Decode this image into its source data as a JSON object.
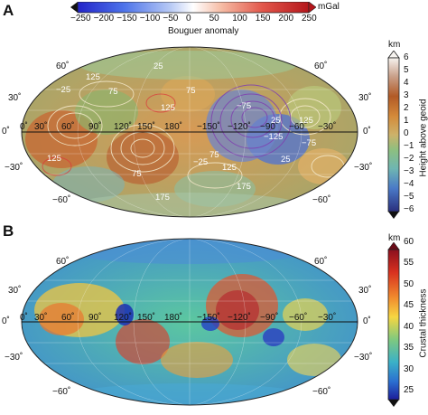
{
  "panel_a": {
    "letter": "A",
    "bouguer_colorbar": {
      "label": "Bouguer anomaly",
      "unit": "mGal",
      "ticks": [
        "−250",
        "−200",
        "−150",
        "−100",
        "−50",
        "0",
        "50",
        "100",
        "150",
        "200",
        "250"
      ],
      "colors": [
        "#2a2fd6",
        "#6f8ff2",
        "#ffffff",
        "#f29a7a",
        "#c9201f"
      ]
    },
    "height_colorbar": {
      "label": "Height above geoid",
      "unit": "km",
      "ticks": [
        "6",
        "5",
        "4",
        "3",
        "2",
        "1",
        "0",
        "−1",
        "−2",
        "−3",
        "−4",
        "−5",
        "−6"
      ]
    },
    "lat_labels": [
      "60˚",
      "30˚",
      "0˚",
      "−30˚",
      "−60˚"
    ],
    "right_lat_labels": [
      "60˚",
      "30˚",
      "0˚",
      "−30˚",
      "−60˚"
    ],
    "lon_labels": [
      "0˚",
      "30˚",
      "60˚",
      "90˚",
      "120˚",
      "150˚",
      "180˚",
      "−150˚",
      "−120˚",
      "−90˚",
      "−60˚",
      "−30˚"
    ],
    "contour_labels": [
      "125",
      "75",
      "−25",
      "25",
      "75",
      "125",
      "−75",
      "−25",
      "75",
      "125",
      "175",
      "−125",
      "−75",
      "25",
      "75",
      "125",
      "25",
      "175",
      "125"
    ]
  },
  "panel_b": {
    "letter": "B",
    "thickness_colorbar": {
      "label": "Crustal thickness",
      "unit": "km",
      "ticks": [
        "60",
        "55",
        "50",
        "45",
        "40",
        "35",
        "30",
        "25"
      ]
    },
    "lat_labels": [
      "60˚",
      "30˚",
      "0˚",
      "−30˚",
      "−60˚"
    ],
    "right_lat_labels": [
      "60˚",
      "30˚",
      "0˚",
      "−30˚",
      "−60˚"
    ],
    "lon_labels": [
      "0˚",
      "30˚",
      "60˚",
      "90˚",
      "120˚",
      "150˚",
      "180˚",
      "−150˚",
      "−120˚",
      "−90˚",
      "−60˚",
      "−30˚"
    ]
  }
}
